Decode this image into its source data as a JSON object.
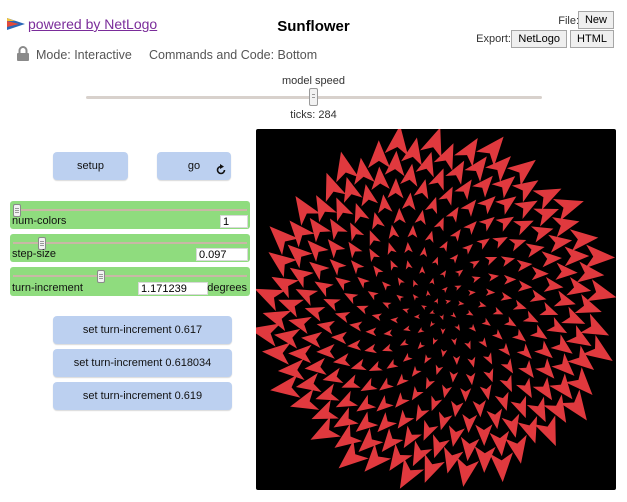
{
  "header": {
    "powered_by": "powered by NetLogo",
    "title": "Sunflower",
    "file_label": "File:",
    "new_button": "New",
    "export_label": "Export:",
    "export_netlogo": "NetLogo",
    "export_html": "HTML"
  },
  "status": {
    "mode": "Mode: Interactive",
    "commands": "Commands and Code: Bottom"
  },
  "speed": {
    "label": "model speed",
    "ticks": "ticks: 284"
  },
  "buttons": {
    "setup": "setup",
    "go": "go",
    "turn1": "set turn-increment 0.617",
    "turn2": "set turn-increment 0.618034",
    "turn3": "set turn-increment 0.619"
  },
  "sliders": {
    "num_colors": {
      "label": "num-colors",
      "value": "1",
      "fraction": 0.0
    },
    "step_size": {
      "label": "step-size",
      "value": "0.097",
      "fraction": 0.11
    },
    "turn_increment": {
      "label": "turn-increment",
      "value": "1.171239",
      "units": "degrees",
      "fraction": 0.37
    }
  },
  "view": {
    "background": "#000000",
    "turtle_color": "#e0393e",
    "turtle_count": 284,
    "step_size": 0.097,
    "turn_increment_degrees": 1.171239
  },
  "colors": {
    "button": "#bcd0f0",
    "slider": "#8fdc7e",
    "link": "#7a2c9a"
  }
}
